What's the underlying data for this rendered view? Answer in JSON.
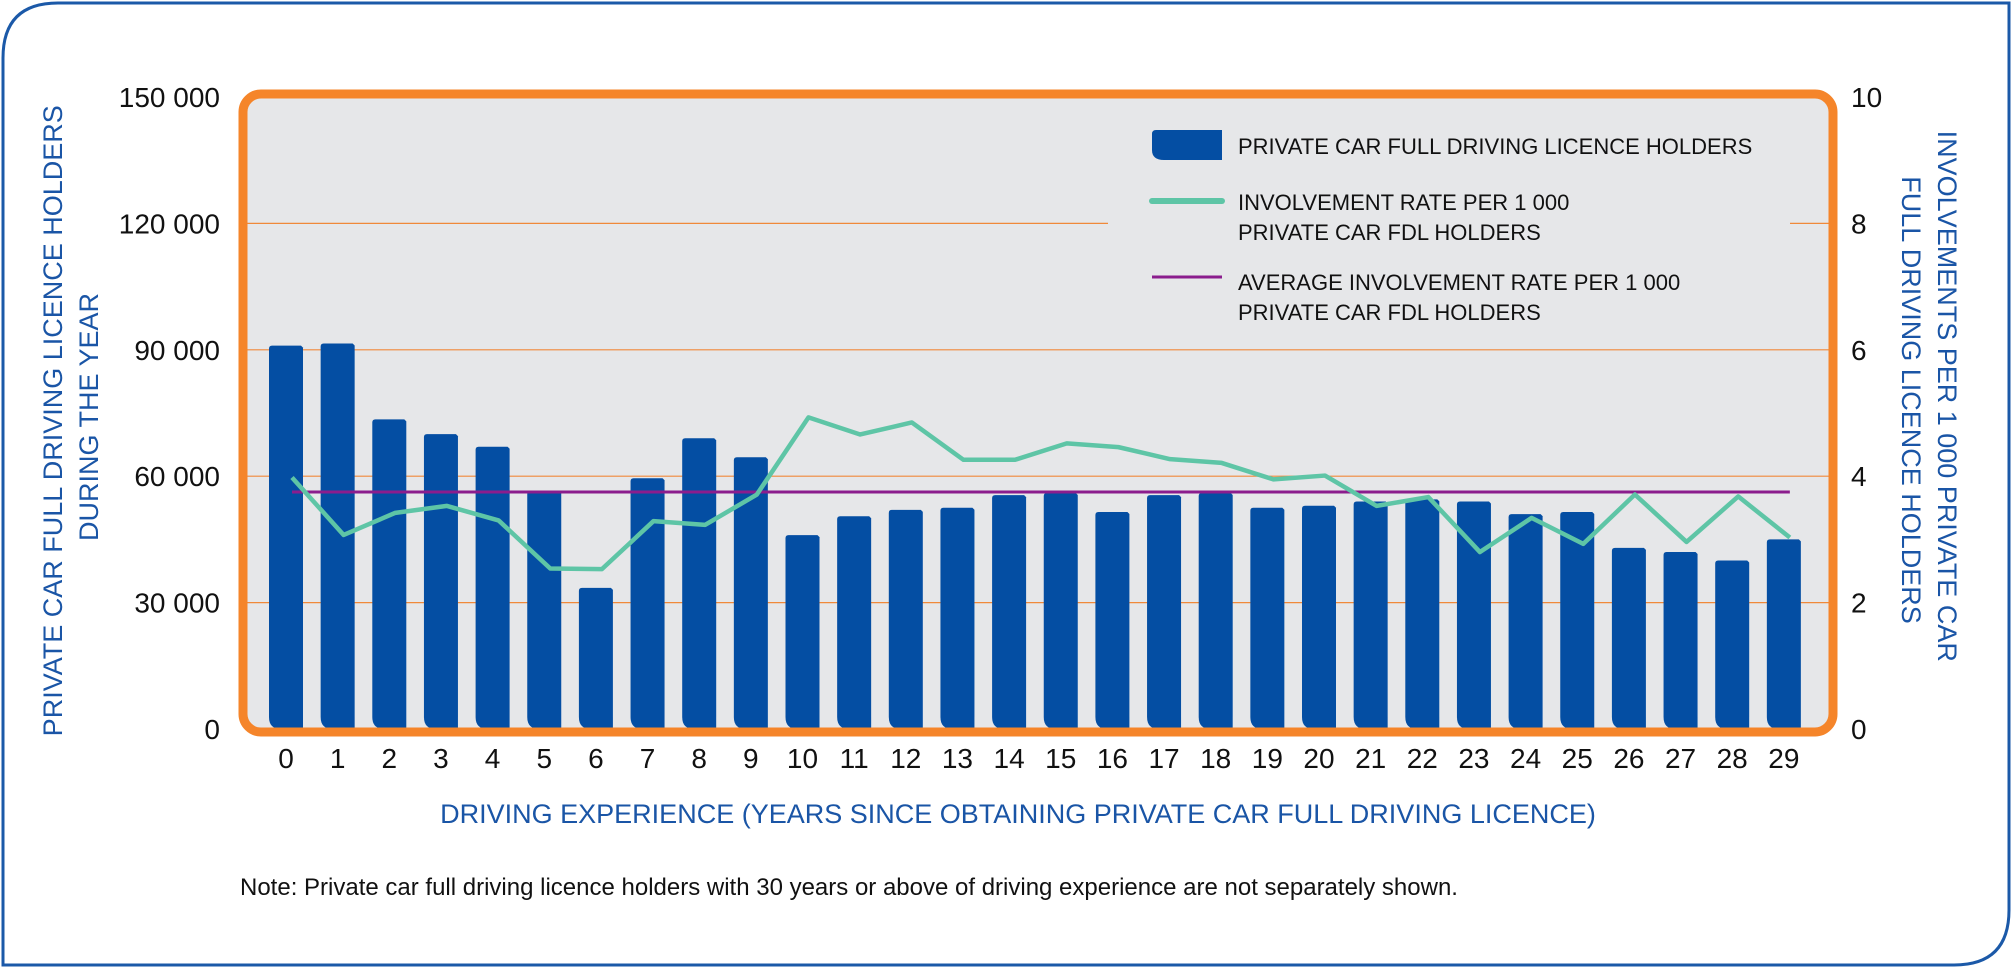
{
  "colors": {
    "frame": "#1b59a8",
    "plot_border": "#f5852a",
    "plot_bg": "#e6e7e9",
    "gridline": "#f0893a",
    "bar": "#044ea3",
    "rate_line": "#5ec5a6",
    "avg_line": "#8b1d8d",
    "axis_title": "#1a55a6"
  },
  "note": "Note: Private car full driving licence holders with 30 years or above of driving experience are not separately shown.",
  "chart_data": {
    "type": "bar",
    "title": "",
    "xlabel": "DRIVING EXPERIENCE (YEARS SINCE OBTAINING PRIVATE CAR FULL DRIVING LICENCE)",
    "ylabel": "PRIVATE CAR FULL DRIVING LICENCE HOLDERS DURING THE YEAR",
    "ylabel_lines": [
      "PRIVATE CAR FULL DRIVING LICENCE HOLDERS",
      "DURING THE YEAR"
    ],
    "y2label": "INVOLVEMENTS PER 1 000 PRIVATE CAR FULL DRIVING LICENCE HOLDERS",
    "y2label_lines": [
      "INVOLVEMENTS PER 1 000 PRIVATE CAR",
      "FULL DRIVING LICENCE HOLDERS"
    ],
    "ylim": [
      0,
      150000
    ],
    "y2lim": [
      0,
      10
    ],
    "yticks": [
      0,
      30000,
      60000,
      90000,
      120000,
      150000
    ],
    "ytick_labels": [
      "0",
      "30 000",
      "60 000",
      "90 000",
      "120 000",
      "150 000"
    ],
    "y2ticks": [
      0,
      2,
      4,
      6,
      8,
      10
    ],
    "y2tick_labels": [
      "0",
      "2",
      "4",
      "6",
      "8",
      "10"
    ],
    "grid": true,
    "legend_position": "top-right",
    "categories": [
      "0",
      "1",
      "2",
      "3",
      "4",
      "5",
      "6",
      "7",
      "8",
      "9",
      "10",
      "11",
      "12",
      "13",
      "14",
      "15",
      "16",
      "17",
      "18",
      "19",
      "20",
      "21",
      "22",
      "23",
      "24",
      "25",
      "26",
      "27",
      "28",
      "29"
    ],
    "series": [
      {
        "name": "PRIVATE CAR FULL DRIVING LICENCE HOLDERS",
        "legend_lines": [
          "PRIVATE CAR FULL DRIVING LICENCE HOLDERS"
        ],
        "type": "bar",
        "axis": "left",
        "values": [
          91000,
          91500,
          73500,
          70000,
          67000,
          56500,
          33500,
          59500,
          69000,
          64500,
          46000,
          50500,
          52000,
          52500,
          55500,
          56000,
          51500,
          55500,
          56000,
          52500,
          53000,
          54000,
          54500,
          54000,
          51000,
          51500,
          43000,
          42000,
          40000,
          45000
        ]
      },
      {
        "name": "INVOLVEMENT RATE PER 1 000 PRIVATE CAR FDL HOLDERS",
        "legend_lines": [
          "INVOLVEMENT RATE PER 1 000",
          "PRIVATE CAR FDL HOLDERS"
        ],
        "type": "line",
        "axis": "right",
        "values": [
          3.98,
          3.07,
          3.42,
          3.53,
          3.3,
          2.54,
          2.53,
          3.29,
          3.23,
          3.71,
          4.93,
          4.66,
          4.85,
          4.26,
          4.26,
          4.52,
          4.46,
          4.27,
          4.21,
          3.95,
          4.01,
          3.53,
          3.67,
          2.8,
          3.34,
          2.93,
          3.71,
          2.96,
          3.68,
          3.03
        ]
      },
      {
        "name": "AVERAGE INVOLVEMENT RATE PER 1 000 PRIVATE CAR FDL HOLDERS",
        "legend_lines": [
          "AVERAGE INVOLVEMENT RATE PER 1 000",
          "PRIVATE CAR FDL HOLDERS"
        ],
        "type": "hline",
        "axis": "right",
        "value": 3.75
      }
    ]
  }
}
